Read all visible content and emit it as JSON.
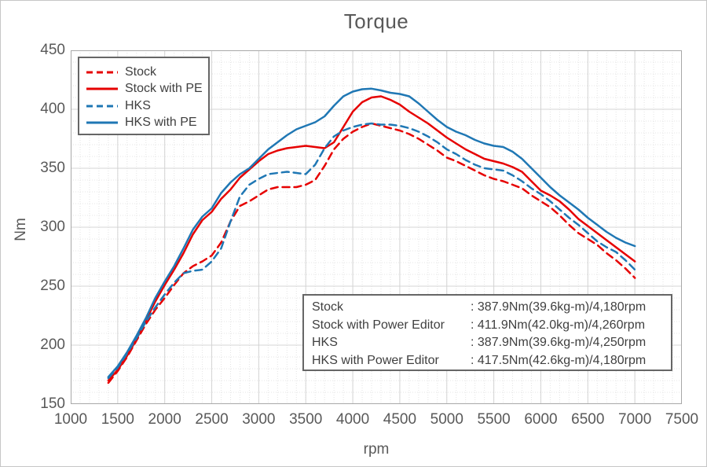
{
  "chart_data": {
    "type": "line",
    "title": "Torque",
    "xlabel": "rpm",
    "ylabel": "Nm",
    "xlim": [
      1000,
      7500
    ],
    "ylim": [
      150,
      450
    ],
    "x_ticks": [
      1000,
      1500,
      2000,
      2500,
      3000,
      3500,
      4000,
      4500,
      5000,
      5500,
      6000,
      6500,
      7000,
      7500
    ],
    "y_ticks": [
      150,
      200,
      250,
      300,
      350,
      400,
      450
    ],
    "minor_grid": {
      "x_step": 100,
      "y_step": 10
    },
    "grid": true,
    "legend_position": "top-left",
    "style": {
      "red": "#e60000",
      "blue": "#1f77b4",
      "grid_major": "#d4d4d4",
      "grid_minor": "#e4e4e4",
      "plot_border": "#a8a8a8",
      "text_color": "#595959",
      "box_text_color": "#3f3f3f",
      "box_border": "#666666"
    },
    "x": [
      1400,
      1500,
      1600,
      1700,
      1800,
      1900,
      2000,
      2100,
      2200,
      2300,
      2400,
      2500,
      2600,
      2700,
      2800,
      2900,
      3000,
      3100,
      3200,
      3300,
      3400,
      3500,
      3600,
      3700,
      3800,
      3900,
      4000,
      4100,
      4200,
      4300,
      4400,
      4500,
      4600,
      4700,
      4800,
      4900,
      5000,
      5100,
      5200,
      5300,
      5400,
      5500,
      5600,
      5700,
      5800,
      5900,
      6000,
      6100,
      6200,
      6300,
      6400,
      6500,
      6600,
      6700,
      6800,
      6900,
      7000
    ],
    "series": [
      {
        "name": "Stock",
        "color": "#e60000",
        "dash": true,
        "values": [
          168,
          178,
          190,
          204,
          218,
          230,
          240,
          251,
          261,
          267,
          271,
          276,
          287,
          305,
          318,
          322,
          327,
          332,
          334,
          334,
          334,
          336,
          340,
          352,
          366,
          375,
          381,
          385,
          388,
          386,
          384,
          382,
          379,
          375,
          370,
          365,
          359,
          356,
          352,
          348,
          344,
          341,
          339,
          336,
          333,
          327,
          322,
          317,
          310,
          302,
          295,
          290,
          285,
          278,
          272,
          265,
          257
        ]
      },
      {
        "name": "Stock with PE",
        "color": "#e60000",
        "dash": false,
        "values": [
          170,
          179,
          191,
          205,
          221,
          237,
          251,
          264,
          278,
          294,
          306,
          313,
          324,
          332,
          342,
          349,
          356,
          362,
          365,
          367,
          368,
          369,
          368,
          367,
          372,
          385,
          398,
          406,
          410,
          411,
          408,
          404,
          398,
          393,
          388,
          382,
          376,
          371,
          366,
          362,
          358,
          356,
          354,
          351,
          347,
          339,
          331,
          327,
          322,
          315,
          307,
          301,
          295,
          289,
          283,
          277,
          271
        ]
      },
      {
        "name": "HKS",
        "color": "#1f77b4",
        "dash": true,
        "values": [
          172,
          181,
          193,
          206,
          220,
          232,
          243,
          253,
          261,
          263,
          264,
          271,
          282,
          305,
          326,
          336,
          341,
          345,
          346,
          347,
          346,
          345,
          353,
          367,
          377,
          382,
          385,
          387,
          388,
          387,
          387,
          386,
          384,
          381,
          377,
          372,
          366,
          362,
          357,
          353,
          350,
          349,
          348,
          344,
          339,
          333,
          328,
          322,
          315,
          308,
          302,
          295,
          288,
          283,
          279,
          272,
          264
        ]
      },
      {
        "name": "HKS with PE",
        "color": "#1f77b4",
        "dash": false,
        "values": [
          173,
          182,
          194,
          208,
          223,
          240,
          254,
          267,
          282,
          298,
          309,
          316,
          329,
          338,
          345,
          350,
          358,
          366,
          372,
          378,
          383,
          386,
          389,
          394,
          403,
          411,
          415,
          417,
          417.5,
          416,
          414,
          413,
          411,
          405,
          398,
          391,
          385,
          381,
          378,
          374,
          371,
          369,
          368,
          364,
          358,
          350,
          342,
          334,
          327,
          321,
          315,
          308,
          302,
          296,
          291,
          287,
          284
        ]
      }
    ],
    "peak_table": {
      "rows": [
        {
          "label": "Stock",
          "value": ": 387.9Nm(39.6kg-m)/4,180rpm"
        },
        {
          "label": "Stock with Power Editor",
          "value": ": 411.9Nm(42.0kg-m)/4,260rpm"
        },
        {
          "label": "HKS",
          "value": ": 387.9Nm(39.6kg-m)/4,250rpm"
        },
        {
          "label": "HKS with Power Editor",
          "value": ": 417.5Nm(42.6kg-m)/4,180rpm"
        }
      ]
    }
  }
}
